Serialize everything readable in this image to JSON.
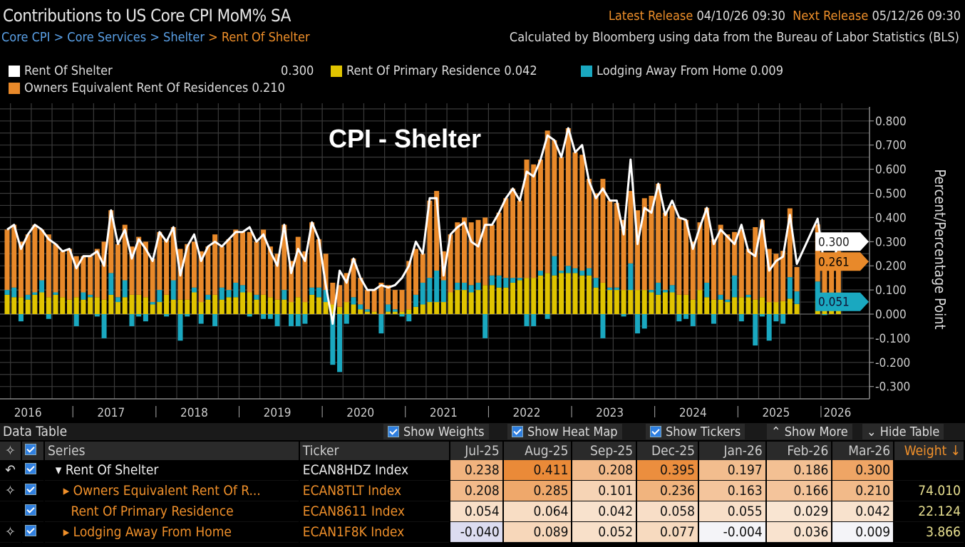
{
  "header": {
    "title": "Contributions to US Core CPI MoM% SA",
    "breadcrumb": [
      "Core CPI",
      "Core Services",
      "Shelter",
      "Rent Of Shelter"
    ],
    "latest_release_label": "Latest Release",
    "latest_release": "04/10/26 09:30",
    "next_release_label": "Next Release",
    "next_release": "05/12/26 09:30",
    "source_note": "Calculated by Bloomberg using data from the Bureau of Labor Statistics (BLS)"
  },
  "legend": [
    {
      "name": "Rent Of Shelter",
      "value": "0.300",
      "color": "#ffffff"
    },
    {
      "name": "Rent Of Primary Residence",
      "value": "0.042",
      "color": "#e0c400"
    },
    {
      "name": "Lodging Away From Home",
      "value": "0.009",
      "color": "#1aa8c0"
    },
    {
      "name": "Owners Equivalent Rent Of Residences",
      "value": "0.210",
      "color": "#e8892a"
    }
  ],
  "chart_data": {
    "type": "bar",
    "title": "CPI - Shelter",
    "ylabel": "Percent/Percentage Point",
    "ylim": [
      -0.3,
      0.8
    ],
    "yticks": [
      "0.800",
      "0.700",
      "0.600",
      "0.500",
      "0.400",
      "0.300",
      "0.200",
      "0.100",
      "0.000",
      "-0.100",
      "-0.200",
      "-0.300"
    ],
    "xticks": [
      "2016",
      "2017",
      "2018",
      "2019",
      "2020",
      "2021",
      "2022",
      "2023",
      "2024",
      "2025",
      "2026"
    ],
    "x_start": "Mar-2016",
    "x_end": "Mar-2026",
    "frequency": "monthly",
    "grid": true,
    "stacked": true,
    "last_value_tags": [
      {
        "value": "0.300",
        "color": "#ffffff"
      },
      {
        "value": "0.261",
        "color": "#e8892a"
      },
      {
        "value": "0.051",
        "color": "#1aa8c0"
      }
    ],
    "series": [
      {
        "name": "Rent Of Shelter",
        "kind": "line",
        "color": "#ffffff",
        "values": [
          0.35,
          0.37,
          0.27,
          0.33,
          0.37,
          0.35,
          0.31,
          0.29,
          0.26,
          0.27,
          0.19,
          0.24,
          0.24,
          0.26,
          0.2,
          0.43,
          0.29,
          0.35,
          0.23,
          0.31,
          0.27,
          0.22,
          0.34,
          0.3,
          0.36,
          0.16,
          0.28,
          0.33,
          0.22,
          0.28,
          0.3,
          0.28,
          0.31,
          0.34,
          0.34,
          0.36,
          0.3,
          0.33,
          0.26,
          0.2,
          0.37,
          0.17,
          0.27,
          0.22,
          0.38,
          0.31,
          0.12,
          -0.04,
          0.18,
          0.13,
          0.23,
          0.15,
          0.1,
          0.1,
          0.12,
          0.11,
          0.12,
          0.15,
          0.2,
          0.3,
          0.25,
          0.48,
          0.48,
          0.16,
          0.33,
          0.36,
          0.38,
          0.3,
          0.28,
          0.37,
          0.37,
          0.42,
          0.48,
          0.52,
          0.47,
          0.59,
          0.57,
          0.64,
          0.74,
          0.72,
          0.65,
          0.77,
          0.67,
          0.7,
          0.55,
          0.48,
          0.52,
          0.47,
          0.47,
          0.33,
          0.64,
          0.29,
          0.44,
          0.42,
          0.54,
          0.41,
          0.47,
          0.4,
          0.39,
          0.27,
          0.36,
          0.44,
          0.29,
          0.35,
          0.32,
          0.29,
          0.37,
          0.26,
          0.24,
          0.39,
          0.18,
          0.22,
          0.238,
          0.411,
          0.208,
          null,
          null,
          0.395,
          0.197,
          0.186,
          0.3
        ]
      },
      {
        "name": "Rent Of Primary Residence",
        "kind": "bar",
        "color": "#e0c400",
        "values": [
          0.08,
          0.07,
          0.07,
          0.06,
          0.08,
          0.09,
          0.07,
          0.08,
          0.07,
          0.06,
          0.07,
          0.06,
          0.07,
          0.07,
          0.06,
          0.08,
          0.05,
          0.07,
          0.08,
          0.08,
          0.07,
          0.04,
          0.05,
          0.08,
          0.06,
          0.06,
          0.06,
          0.09,
          0.05,
          0.06,
          0.08,
          0.06,
          0.07,
          0.07,
          0.09,
          0.09,
          0.06,
          0.08,
          0.07,
          0.06,
          0.06,
          0.05,
          0.07,
          0.05,
          0.08,
          0.07,
          0.05,
          0.04,
          0.03,
          0.05,
          0.04,
          0.02,
          0.01,
          0.01,
          0.0,
          0.01,
          0.01,
          0.01,
          0.02,
          0.03,
          0.04,
          0.05,
          0.05,
          0.05,
          0.09,
          0.1,
          0.1,
          0.09,
          0.1,
          0.12,
          0.12,
          0.11,
          0.11,
          0.13,
          0.14,
          0.15,
          0.15,
          0.16,
          0.17,
          0.16,
          0.17,
          0.17,
          0.17,
          0.16,
          0.16,
          0.11,
          0.13,
          0.1,
          0.1,
          0.1,
          0.1,
          0.1,
          0.1,
          0.09,
          0.08,
          0.09,
          0.09,
          0.08,
          0.08,
          0.06,
          0.1,
          0.07,
          0.06,
          0.06,
          0.05,
          0.07,
          0.07,
          0.07,
          0.06,
          0.07,
          0.05,
          0.05,
          0.054,
          0.064,
          0.042,
          null,
          null,
          0.058,
          0.055,
          0.029,
          0.042
        ]
      },
      {
        "name": "Lodging Away From Home",
        "kind": "bar",
        "color": "#1aa8c0",
        "values": [
          0.02,
          0.04,
          -0.03,
          0.02,
          0.01,
          0.05,
          -0.02,
          0.01,
          0.0,
          0.0,
          -0.05,
          0.03,
          0.01,
          -0.01,
          -0.1,
          0.09,
          0.02,
          0.07,
          -0.05,
          -0.01,
          -0.03,
          0.01,
          0.05,
          -0.01,
          0.08,
          -0.11,
          -0.01,
          0.02,
          -0.04,
          0.02,
          -0.05,
          0.05,
          0.03,
          0.06,
          0.03,
          -0.01,
          0.02,
          -0.02,
          -0.02,
          -0.05,
          0.04,
          -0.05,
          -0.05,
          -0.04,
          0.03,
          0.04,
          0.05,
          -0.21,
          -0.24,
          -0.04,
          0.03,
          0.02,
          0.01,
          0.0,
          -0.08,
          0.03,
          0.01,
          -0.01,
          -0.03,
          0.05,
          0.09,
          0.1,
          0.13,
          0.09,
          0.0,
          0.03,
          0.03,
          0.03,
          0.03,
          -0.1,
          0.04,
          0.05,
          0.04,
          0.02,
          0.01,
          -0.05,
          -0.05,
          0.02,
          -0.02,
          0.08,
          0.01,
          0.03,
          0.02,
          0.02,
          0.03,
          0.04,
          -0.1,
          0.01,
          0.01,
          -0.01,
          0.11,
          -0.08,
          -0.06,
          0.01,
          0.05,
          0.01,
          0.03,
          -0.03,
          -0.02,
          -0.05,
          0.0,
          0.06,
          -0.04,
          0.02,
          0.01,
          0.09,
          -0.03,
          0.01,
          -0.13,
          -0.01,
          -0.11,
          -0.03,
          -0.04,
          0.089,
          0.052,
          null,
          null,
          0.077,
          -0.004,
          0.036,
          0.009
        ]
      },
      {
        "name": "Owners Equivalent Rent Of Residences",
        "kind": "bar",
        "color": "#e8892a",
        "values": [
          0.25,
          0.26,
          0.23,
          0.25,
          0.28,
          0.21,
          0.26,
          0.2,
          0.19,
          0.21,
          0.17,
          0.15,
          0.16,
          0.2,
          0.24,
          0.26,
          0.22,
          0.23,
          0.2,
          0.24,
          0.23,
          0.18,
          0.24,
          0.23,
          0.22,
          0.21,
          0.23,
          0.19,
          0.21,
          0.2,
          0.25,
          0.17,
          0.21,
          0.22,
          0.22,
          0.25,
          0.22,
          0.27,
          0.21,
          0.19,
          0.27,
          0.17,
          0.25,
          0.21,
          0.27,
          0.2,
          0.15,
          0.09,
          0.09,
          0.12,
          0.16,
          0.11,
          0.08,
          0.09,
          0.13,
          0.08,
          0.08,
          0.09,
          0.2,
          0.19,
          0.12,
          0.32,
          0.33,
          0.12,
          0.24,
          0.25,
          0.27,
          0.26,
          0.26,
          0.28,
          0.21,
          0.26,
          0.33,
          0.37,
          0.32,
          0.49,
          0.47,
          0.46,
          0.59,
          0.48,
          0.47,
          0.57,
          0.48,
          0.48,
          0.37,
          0.35,
          0.43,
          0.36,
          0.35,
          0.29,
          0.3,
          0.33,
          0.38,
          0.39,
          0.41,
          0.32,
          0.33,
          0.32,
          0.31,
          0.24,
          0.28,
          0.31,
          0.25,
          0.29,
          0.27,
          0.18,
          0.28,
          0.19,
          0.3,
          0.32,
          0.22,
          0.2,
          0.208,
          0.285,
          0.101,
          null,
          null,
          0.236,
          0.163,
          0.166,
          0.21
        ]
      }
    ]
  },
  "table": {
    "title": "Data Table",
    "buttons": [
      "Show Weights",
      "Show Heat Map",
      "Show Tickers",
      "Show More",
      "Hide Table"
    ],
    "columns": [
      "Series",
      "Ticker",
      "Jul-25",
      "Aug-25",
      "Sep-25",
      "Dec-25",
      "Jan-26",
      "Feb-26",
      "Mar-26",
      "Weight"
    ],
    "rows": [
      {
        "series": "Rent Of Shelter",
        "ticker": "ECAN8HDZ Index",
        "values": [
          "0.238",
          "0.411",
          "0.208",
          "0.395",
          "0.197",
          "0.186",
          "0.300"
        ],
        "weight": ""
      },
      {
        "series": "Owners Equivalent Rent Of R...",
        "ticker": "ECAN8TLT Index",
        "values": [
          "0.208",
          "0.285",
          "0.101",
          "0.236",
          "0.163",
          "0.166",
          "0.210"
        ],
        "weight": "74.010"
      },
      {
        "series": "Rent Of Primary Residence",
        "ticker": "ECAN8611 Index",
        "values": [
          "0.054",
          "0.064",
          "0.042",
          "0.058",
          "0.055",
          "0.029",
          "0.042"
        ],
        "weight": "22.124"
      },
      {
        "series": "Lodging Away From Home",
        "ticker": "ECAN1F8K Index",
        "values": [
          "-0.040",
          "0.089",
          "0.052",
          "0.077",
          "-0.004",
          "0.036",
          "0.009"
        ],
        "weight": "3.866"
      }
    ]
  }
}
